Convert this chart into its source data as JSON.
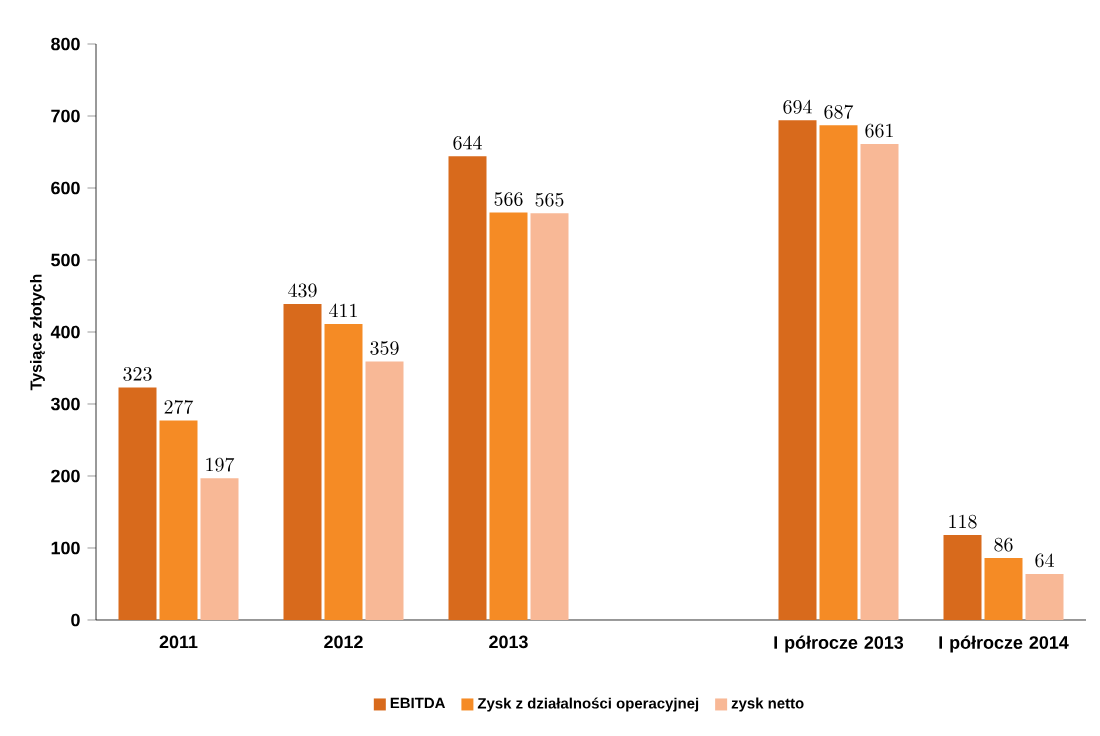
{
  "chart_data": {
    "type": "bar",
    "ylabel": "Tysiące złotych",
    "categories": [
      "2011",
      "2012",
      "2013",
      null,
      "I półrocze 2013",
      "I półrocze 2014"
    ],
    "series": [
      {
        "name": "EBITDA",
        "color": "#d86a1c",
        "values": [
          323,
          439,
          644,
          null,
          694,
          118
        ]
      },
      {
        "name": "Zysk z działalności operacyjnej",
        "color": "#f58b25",
        "values": [
          277,
          411,
          566,
          null,
          687,
          86
        ]
      },
      {
        "name": "zysk netto",
        "color": "#f8b896",
        "values": [
          197,
          359,
          565,
          null,
          661,
          64
        ]
      }
    ],
    "ylim": [
      0,
      800
    ],
    "yticks": [
      0,
      100,
      200,
      300,
      400,
      500,
      600,
      700,
      800
    ],
    "data_labels": true,
    "legend": "bottom",
    "grid": false
  }
}
